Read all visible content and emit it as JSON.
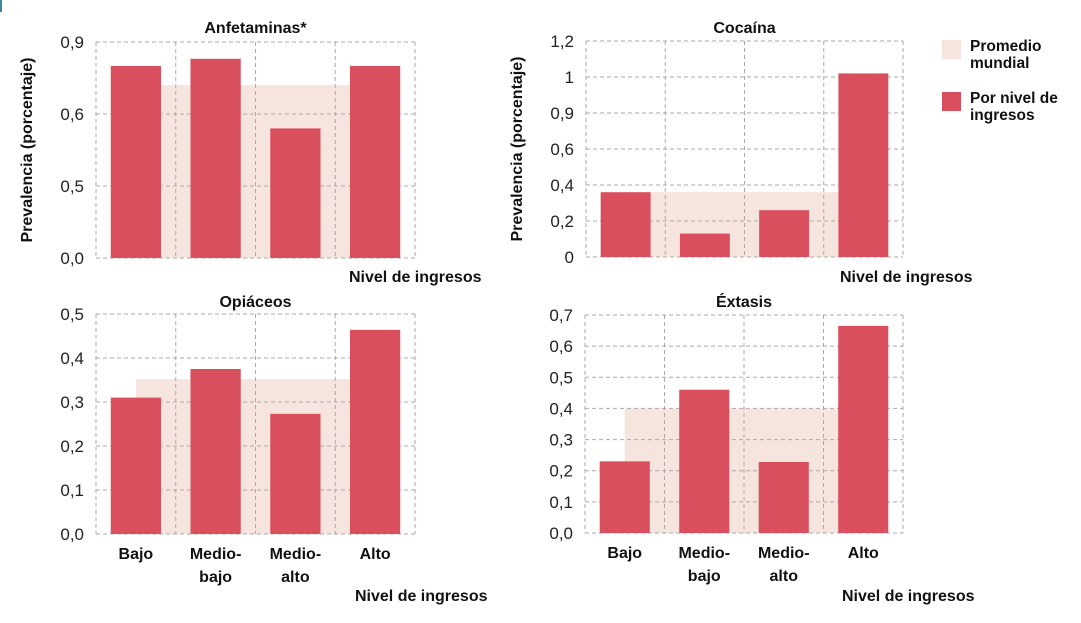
{
  "colors": {
    "bar": "#D94F5E",
    "average_band": "#F5E5DE",
    "grid": "#AAAAAA",
    "text": "#111111"
  },
  "legend": {
    "items": [
      {
        "label": "Promedio mundial",
        "color": "#F5E5DE"
      },
      {
        "label": "Por nivel de ingresos",
        "color": "#D94F5E"
      }
    ]
  },
  "chart_data": [
    {
      "type": "bar",
      "title": "Anfetaminas*",
      "ylabel": "Prevalencia (porcentaje)",
      "xlabel": "Nivel de ingresos",
      "categories": [
        "Bajo",
        "Medio-bajo",
        "Medio-alto",
        "Alto"
      ],
      "show_category_labels": false,
      "y_tick_labels": [
        "0,0",
        "0,5",
        "0,6",
        "0,9"
      ],
      "y_tick_values": [
        0.0,
        0.5,
        0.6,
        0.9
      ],
      "note": "axis is non-linear: evenly spaced ticks 0,0 / 0,5 / 0,6 / 0,9",
      "series": [
        {
          "name": "Por nivel de ingresos",
          "values": [
            0.8,
            0.83,
            0.58,
            0.8
          ]
        },
        {
          "name": "Promedio mundial",
          "values": [
            0.72
          ]
        }
      ],
      "grid": true
    },
    {
      "type": "bar",
      "title": "Cocaína",
      "ylabel": "Prevalencia (porcentaje)",
      "xlabel": "Nivel de ingresos",
      "categories": [
        "Bajo",
        "Medio-bajo",
        "Medio-alto",
        "Alto"
      ],
      "show_category_labels": false,
      "y_tick_labels": [
        "0",
        "0,2",
        "0,4",
        "0,6",
        "0,9",
        "1",
        "1,2"
      ],
      "y_tick_values": [
        0,
        0.2,
        0.4,
        0.6,
        0.9,
        1.0,
        1.2
      ],
      "note": "evenly spaced tick labels as printed",
      "series": [
        {
          "name": "Por nivel de ingresos",
          "values": [
            0.36,
            0.13,
            0.26,
            1.02
          ]
        },
        {
          "name": "Promedio mundial",
          "values": [
            0.36
          ]
        }
      ],
      "grid": true
    },
    {
      "type": "bar",
      "title": "Opiáceos",
      "ylabel": "",
      "xlabel": "Nivel de ingresos",
      "categories": [
        "Bajo",
        "Medio-bajo",
        "Medio-alto",
        "Alto"
      ],
      "category_lines": [
        [
          "Bajo"
        ],
        [
          "Medio-",
          "bajo"
        ],
        [
          "Medio-",
          "alto"
        ],
        [
          "Alto"
        ]
      ],
      "show_category_labels": true,
      "y_tick_labels": [
        "0,0",
        "0,1",
        "0,2",
        "0,3",
        "0,4",
        "0,5"
      ],
      "y_tick_values": [
        0.0,
        0.1,
        0.2,
        0.3,
        0.4,
        0.5
      ],
      "ylim": [
        0,
        0.5
      ],
      "series": [
        {
          "name": "Por nivel de ingresos",
          "values": [
            0.31,
            0.375,
            0.273,
            0.464
          ]
        },
        {
          "name": "Promedio mundial",
          "values": [
            0.352
          ]
        }
      ],
      "grid": true
    },
    {
      "type": "bar",
      "title": "Éxtasis",
      "ylabel": "",
      "xlabel": "Nivel de ingresos",
      "categories": [
        "Bajo",
        "Medio-bajo",
        "Medio-alto",
        "Alto"
      ],
      "category_lines": [
        [
          "Bajo"
        ],
        [
          "Medio-",
          "bajo"
        ],
        [
          "Medio-",
          "alto"
        ],
        [
          "Alto"
        ]
      ],
      "show_category_labels": true,
      "y_tick_labels": [
        "0,0",
        "0,1",
        "0,2",
        "0,3",
        "0,4",
        "0,5",
        "0,6",
        "0,7"
      ],
      "y_tick_values": [
        0.0,
        0.1,
        0.2,
        0.3,
        0.4,
        0.5,
        0.6,
        0.7
      ],
      "ylim": [
        0,
        0.7
      ],
      "series": [
        {
          "name": "Por nivel de ingresos",
          "values": [
            0.23,
            0.46,
            0.228,
            0.665
          ]
        },
        {
          "name": "Promedio mundial",
          "values": [
            0.4
          ]
        }
      ],
      "grid": true
    }
  ]
}
